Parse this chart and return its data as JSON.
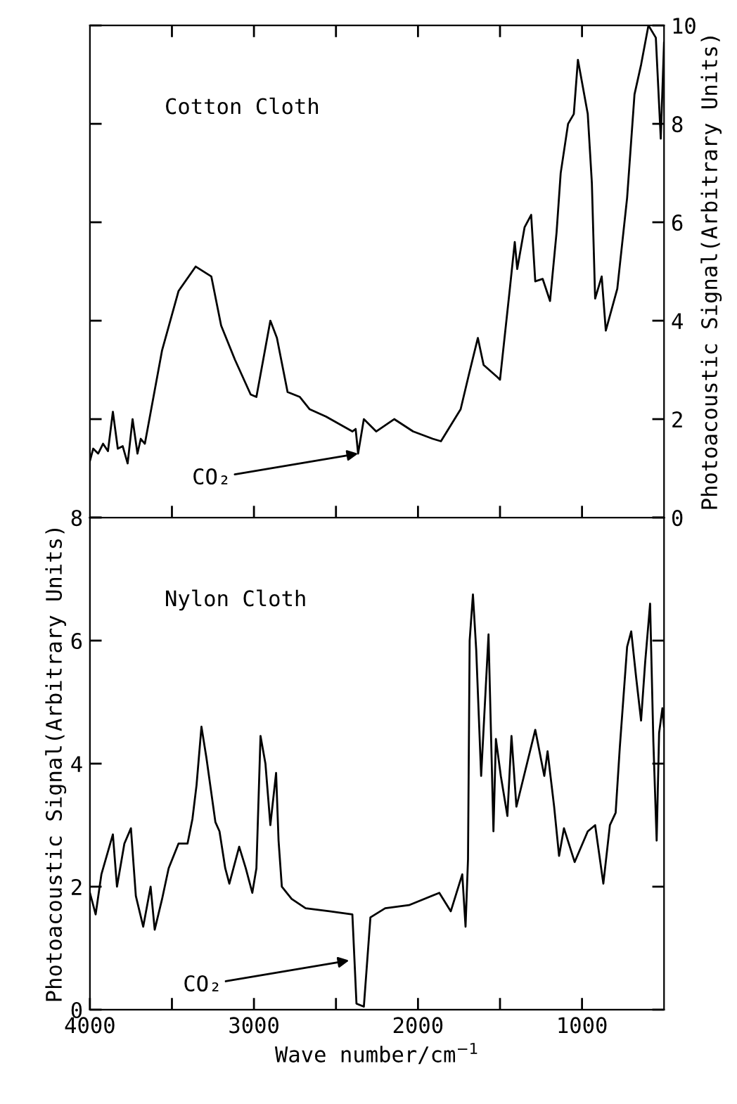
{
  "chart_data": [
    {
      "type": "line",
      "tick_labels": "y",
      "xlim": [
        4000,
        500
      ],
      "xticks": [
        {
          "value": 3500,
          "label": null
        },
        3000,
        {
          "value": 2500,
          "label": null
        },
        2000,
        {
          "value": 1500,
          "label": null
        },
        1000
      ],
      "ylim": [
        0,
        10
      ],
      "yticks": [
        0,
        2,
        4,
        6,
        8,
        10
      ],
      "y2label": "Photoacoustic Signal(Arbitrary Units)",
      "annotations": [
        "Cotton Cloth",
        {
          "text": "CO₂",
          "x": 2365,
          "y": 1.3
        }
      ],
      "series": [
        {
          "color": "#000000",
          "x": [
            4000,
            3980,
            3950,
            3920,
            3890,
            3860,
            3830,
            3800,
            3770,
            3740,
            3710,
            3690,
            3665,
            3560,
            3460,
            3355,
            3260,
            3200,
            3115,
            3020,
            2985,
            2900,
            2860,
            2795,
            2720,
            2660,
            2560,
            2400,
            2380,
            2365,
            2330,
            2255,
            2145,
            2030,
            1910,
            1860,
            1740,
            1690,
            1635,
            1600,
            1515,
            1500,
            1440,
            1410,
            1395,
            1350,
            1310,
            1285,
            1240,
            1195,
            1155,
            1130,
            1085,
            1050,
            1025,
            965,
            940,
            920,
            880,
            855,
            785,
            725,
            680,
            640,
            595,
            550,
            520,
            500
          ],
          "values": [
            1.15,
            1.4,
            1.3,
            1.5,
            1.35,
            2.15,
            1.4,
            1.45,
            1.1,
            2.0,
            1.3,
            1.6,
            1.5,
            3.4,
            4.6,
            5.1,
            4.9,
            3.9,
            3.2,
            2.5,
            2.45,
            4.0,
            3.65,
            2.55,
            2.45,
            2.2,
            2.05,
            1.75,
            1.8,
            1.3,
            2.0,
            1.75,
            2.0,
            1.75,
            1.6,
            1.55,
            2.2,
            2.9,
            3.65,
            3.1,
            2.85,
            2.8,
            4.65,
            5.6,
            5.05,
            5.9,
            6.15,
            4.8,
            4.85,
            4.4,
            5.8,
            7.0,
            8.0,
            8.2,
            9.3,
            8.2,
            6.8,
            4.45,
            4.9,
            3.8,
            4.65,
            6.5,
            8.6,
            9.2,
            10.0,
            9.75,
            7.7,
            9.65
          ]
        }
      ]
    },
    {
      "type": "line",
      "xlim": [
        4000,
        500
      ],
      "xticks": [
        4000,
        {
          "value": 3500,
          "label": null
        },
        3000,
        {
          "value": 2500,
          "label": null
        },
        2000,
        {
          "value": 1500,
          "label": null
        },
        1000
      ],
      "xlabel": "Wave number/cm$^{−1}$",
      "ylim": [
        0,
        8
      ],
      "yticks": [
        0,
        2,
        4,
        6,
        8
      ],
      "ylabel": "Photoacoustic Signal(Arbitrary Units)",
      "annotations": [
        "Nylon Cloth",
        {
          "text": "CO₂",
          "x": 2420,
          "y": 0.8
        }
      ],
      "series": [
        {
          "color": "#000000",
          "x": [
            4000,
            3965,
            3930,
            3860,
            3835,
            3790,
            3750,
            3720,
            3675,
            3630,
            3605,
            3560,
            3520,
            3460,
            3405,
            3375,
            3350,
            3320,
            3290,
            3235,
            3210,
            3175,
            3150,
            3090,
            3050,
            3010,
            2985,
            2960,
            2930,
            2900,
            2865,
            2850,
            2830,
            2770,
            2685,
            2540,
            2400,
            2375,
            2330,
            2290,
            2200,
            2055,
            1870,
            1800,
            1730,
            1710,
            1695,
            1685,
            1665,
            1645,
            1615,
            1570,
            1555,
            1540,
            1525,
            1495,
            1455,
            1430,
            1400,
            1285,
            1230,
            1210,
            1170,
            1140,
            1110,
            1045,
            965,
            920,
            870,
            830,
            795,
            770,
            725,
            700,
            670,
            640,
            615,
            585,
            565,
            545,
            530,
            510,
            500
          ],
          "values": [
            1.9,
            1.55,
            2.2,
            2.85,
            2.0,
            2.7,
            2.95,
            1.85,
            1.35,
            2.0,
            1.3,
            1.8,
            2.3,
            2.7,
            2.7,
            3.1,
            3.65,
            4.6,
            4.1,
            3.05,
            2.9,
            2.3,
            2.05,
            2.65,
            2.3,
            1.9,
            2.3,
            4.45,
            4.0,
            3.0,
            3.85,
            2.75,
            2.0,
            1.8,
            1.65,
            1.6,
            1.55,
            0.1,
            0.05,
            1.5,
            1.65,
            1.7,
            1.9,
            1.6,
            2.2,
            1.35,
            2.45,
            6.0,
            6.75,
            5.85,
            3.8,
            6.1,
            4.5,
            2.9,
            4.4,
            3.8,
            3.15,
            4.45,
            3.3,
            4.55,
            3.8,
            4.2,
            3.3,
            2.5,
            2.95,
            2.4,
            2.9,
            3.0,
            2.05,
            3.0,
            3.2,
            4.25,
            5.9,
            6.15,
            5.4,
            4.7,
            5.65,
            6.6,
            4.35,
            2.75,
            4.5,
            4.9,
            4.6
          ]
        }
      ]
    }
  ]
}
